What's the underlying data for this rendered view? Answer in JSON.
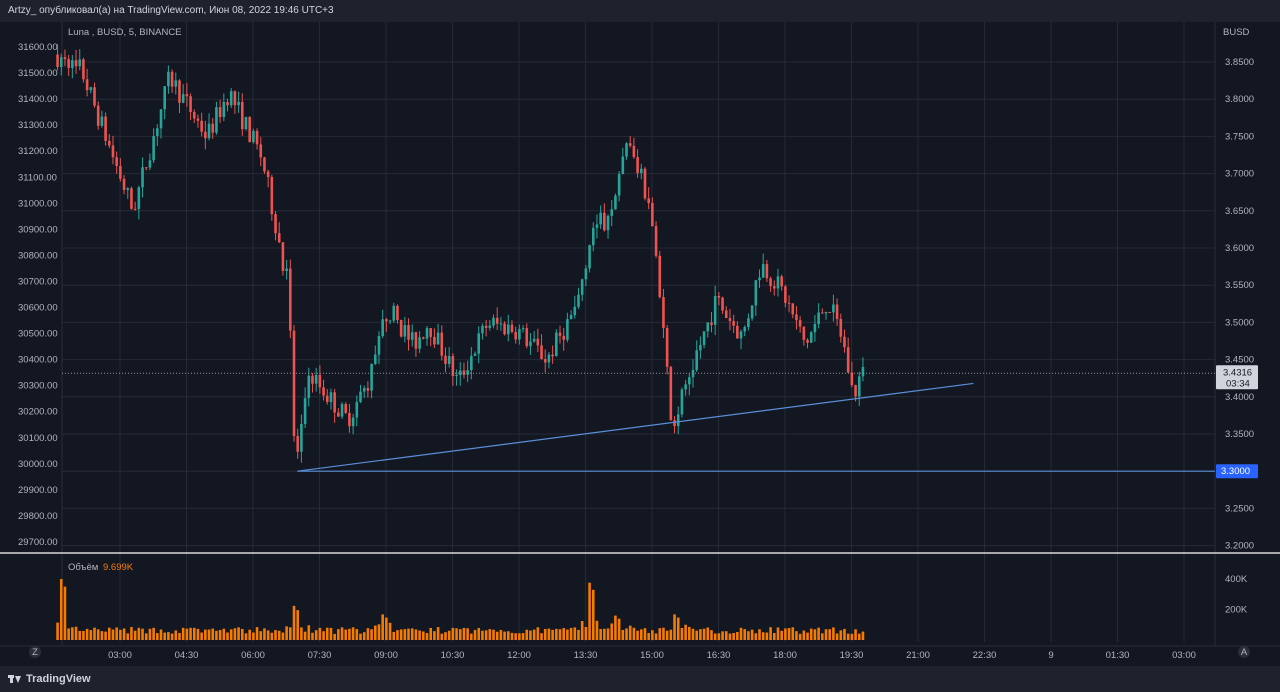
{
  "header": {
    "publish_info": "Artzy_ опубликовал(а) на TradingView.com, Июн 08, 2022 19:46 UTC+3"
  },
  "legend": {
    "symbol": "Luna , BUSD, 5, BINANCE",
    "volume_label": "Объём",
    "volume_value": "9.699K"
  },
  "footer": {
    "logo_text": "TradingView",
    "left_button": "Z",
    "right_button": "A"
  },
  "colors": {
    "background": "#131722",
    "up": "#26a69a",
    "down": "#ef5350",
    "volume": "#f57c00",
    "trendline": "#5a8fd8",
    "grid": "#262a35"
  },
  "chart_data": {
    "type": "candlestick",
    "symbol": "Luna , BUSD, 5, BINANCE",
    "right_axis": {
      "label": "BUSD",
      "ticks": [
        3.85,
        3.8,
        3.75,
        3.7,
        3.65,
        3.6,
        3.55,
        3.5,
        3.45,
        3.4,
        3.35,
        3.3,
        3.25,
        3.2
      ],
      "tick_labels": [
        "3.8500",
        "3.8000",
        "3.7500",
        "3.7000",
        "3.6500",
        "3.6000",
        "3.5500",
        "3.5000",
        "3.4500",
        "3.4000",
        "3.3500",
        "3.3000",
        "3.2500",
        "3.2000"
      ],
      "range": [
        3.19,
        3.87
      ]
    },
    "left_axis": {
      "ticks": [
        31600,
        31500,
        31400,
        31300,
        31200,
        31100,
        31000,
        30900,
        30800,
        30700,
        30600,
        30500,
        30400,
        30300,
        30200,
        30100,
        30000,
        29900,
        29800,
        29700
      ],
      "tick_labels": [
        "31600.00",
        "31500.00",
        "31400.00",
        "31300.00",
        "31200.00",
        "31100.00",
        "31000.00",
        "30900.00",
        "30800.00",
        "30700.00",
        "30600.00",
        "30500.00",
        "30400.00",
        "30300.00",
        "30200.00",
        "30100.00",
        "30000.00",
        "29900.00",
        "29800.00",
        "29700.00"
      ]
    },
    "x_axis": {
      "tick_labels": [
        "03:00",
        "04:30",
        "06:00",
        "07:30",
        "09:00",
        "10:30",
        "12:00",
        "13:30",
        "15:00",
        "16:30",
        "18:00",
        "19:30",
        "21:00",
        "22:30",
        "9",
        "01:30",
        "03:00"
      ],
      "start_hour": 1.55,
      "end_hour": 19.75
    },
    "last_price": {
      "value": 3.4316,
      "label": "3.4316",
      "countdown": "03:34"
    },
    "horizontal_line": {
      "value": 3.3,
      "label": "3.3000"
    },
    "trendline": {
      "from": {
        "time": "07:00",
        "price": 3.3
      },
      "to": {
        "time": "22:15",
        "price": 3.418
      }
    },
    "key_points": [
      {
        "time": "01:35",
        "price": 3.86
      },
      {
        "time": "02:10",
        "price": 3.84
      },
      {
        "time": "03:20",
        "price": 3.65
      },
      {
        "time": "04:10",
        "price": 3.83
      },
      {
        "time": "05:00",
        "price": 3.75
      },
      {
        "time": "05:30",
        "price": 3.81
      },
      {
        "time": "06:15",
        "price": 3.72
      },
      {
        "time": "06:50",
        "price": 3.55
      },
      {
        "time": "07:00",
        "price": 3.3
      },
      {
        "time": "07:20",
        "price": 3.43
      },
      {
        "time": "08:10",
        "price": 3.37
      },
      {
        "time": "08:40",
        "price": 3.42
      },
      {
        "time": "09:05",
        "price": 3.52
      },
      {
        "time": "09:40",
        "price": 3.47
      },
      {
        "time": "10:00",
        "price": 3.5
      },
      {
        "time": "10:40",
        "price": 3.42
      },
      {
        "time": "11:20",
        "price": 3.5
      },
      {
        "time": "12:00",
        "price": 3.49
      },
      {
        "time": "12:40",
        "price": 3.45
      },
      {
        "time": "13:20",
        "price": 3.52
      },
      {
        "time": "13:40",
        "price": 3.62
      },
      {
        "time": "14:00",
        "price": 3.64
      },
      {
        "time": "14:30",
        "price": 3.74
      },
      {
        "time": "15:00",
        "price": 3.66
      },
      {
        "time": "15:30",
        "price": 3.36
      },
      {
        "time": "16:00",
        "price": 3.45
      },
      {
        "time": "16:30",
        "price": 3.53
      },
      {
        "time": "17:05",
        "price": 3.48
      },
      {
        "time": "17:30",
        "price": 3.58
      },
      {
        "time": "18:00",
        "price": 3.54
      },
      {
        "time": "18:30",
        "price": 3.47
      },
      {
        "time": "19:00",
        "price": 3.53
      },
      {
        "time": "19:20",
        "price": 3.48
      },
      {
        "time": "19:35",
        "price": 3.4
      },
      {
        "time": "19:45",
        "price": 3.43
      }
    ],
    "volume": {
      "label": "Объём",
      "current": "9.699K",
      "ticks": [
        400000,
        200000
      ],
      "tick_labels": [
        "400K",
        "200K"
      ],
      "range": [
        0,
        520000
      ],
      "spikes": [
        {
          "time": "01:40",
          "value": 500000
        },
        {
          "time": "06:55",
          "value": 280000
        },
        {
          "time": "08:55",
          "value": 210000
        },
        {
          "time": "13:35",
          "value": 470000
        },
        {
          "time": "14:10",
          "value": 200000
        },
        {
          "time": "15:30",
          "value": 210000
        }
      ]
    }
  }
}
